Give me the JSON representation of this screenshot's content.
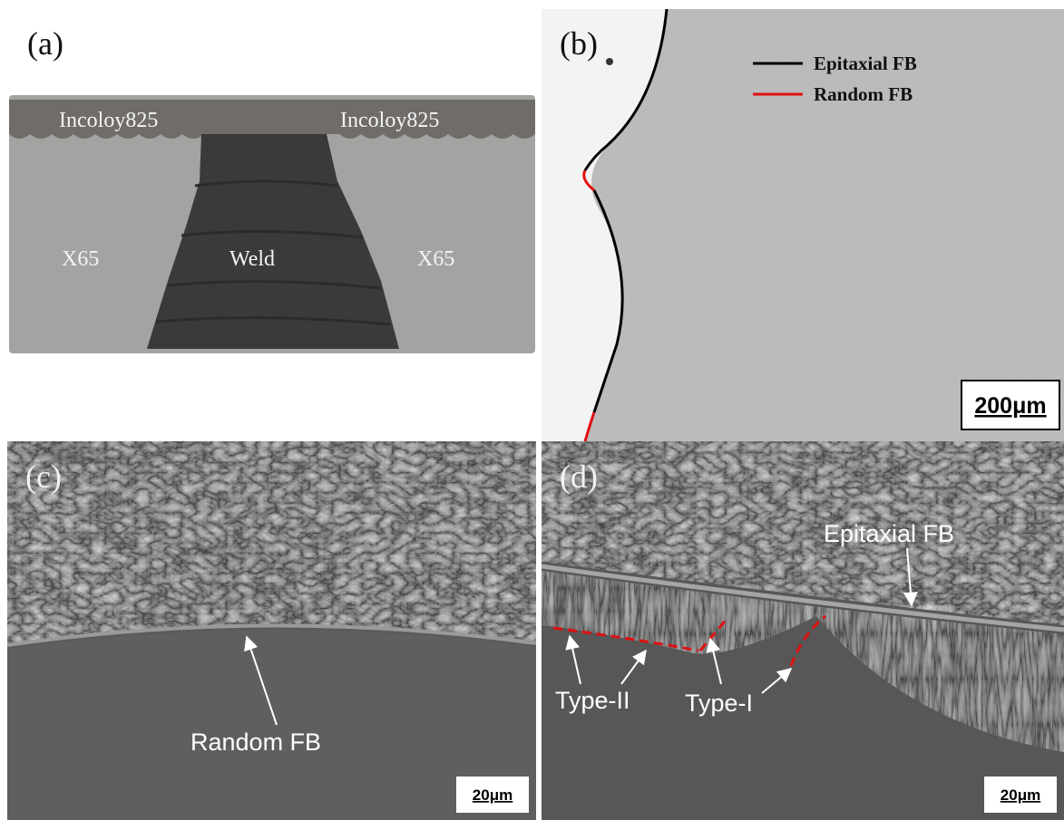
{
  "panels": [
    {
      "label": "(a)",
      "annotations": [
        "Incoloy825",
        "Incoloy825",
        "X65",
        "Weld",
        "X65"
      ]
    },
    {
      "label": "(b)",
      "legend": [
        "Epitaxial FB",
        "Random FB"
      ],
      "scale_bar": "200μm"
    },
    {
      "label": "(c)",
      "annotations": [
        "Random FB"
      ],
      "scale_bar": "20μm"
    },
    {
      "label": "(d)",
      "annotations": [
        "Epitaxial FB",
        "Type-II",
        "Type-I"
      ],
      "scale_bar": "20μm"
    }
  ]
}
